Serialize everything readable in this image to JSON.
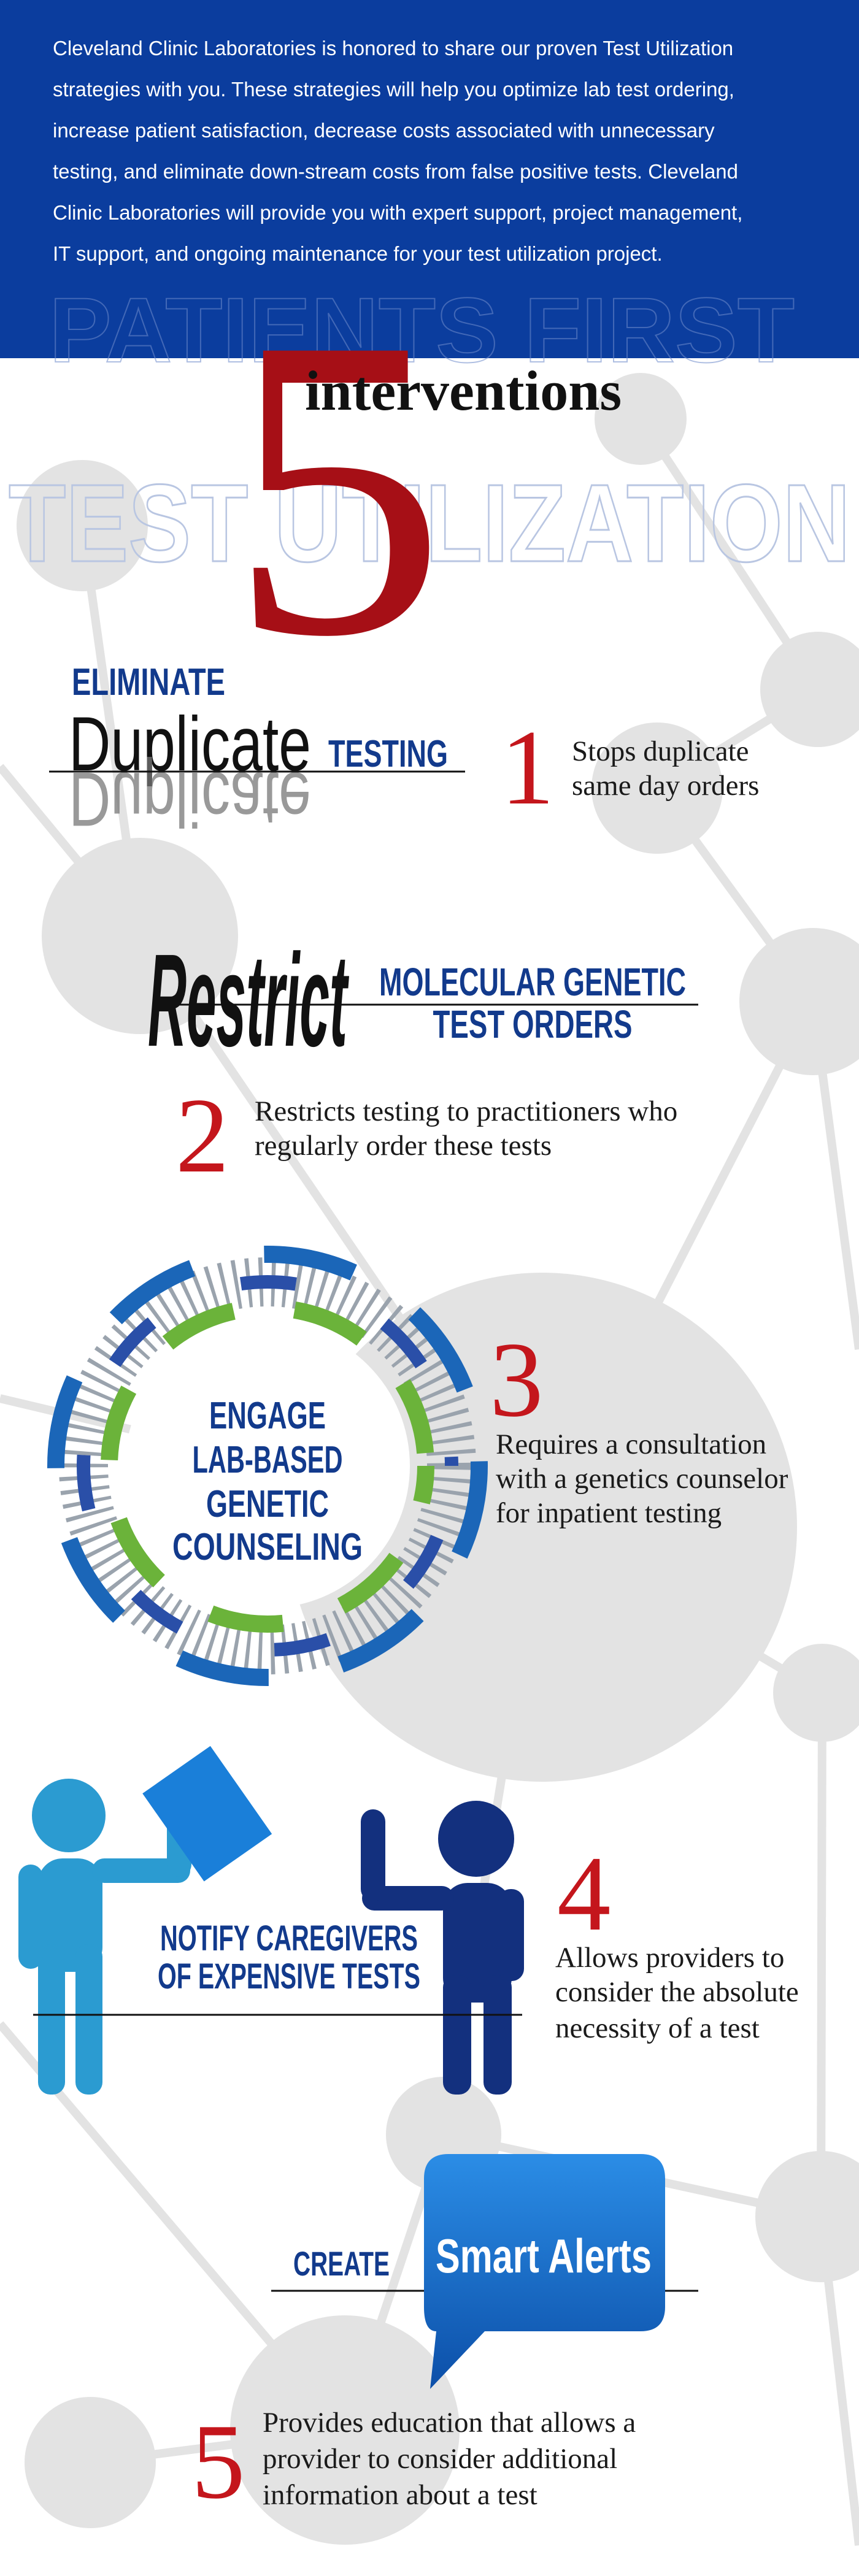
{
  "intro": [
    "Cleveland Clinic Laboratories is honored to share our proven Test Utilization",
    "strategies with you. These strategies will help you optimize lab test ordering,",
    "increase patient satisfaction, decrease costs associated with unnecessary",
    "testing, and eliminate down-stream costs from false positive tests. Cleveland",
    "Clinic Laboratories will provide you with expert support, project management,",
    "IT support, and ongoing maintenance for your test utilization project."
  ],
  "watermarks": [
    "PATIENTS FIRST",
    "TEST UTILIZATION"
  ],
  "headline": {
    "number": "5",
    "word": "interventions"
  },
  "interventions": [
    {
      "number": "1",
      "headings": [
        "ELIMINATE",
        "Duplicate",
        "TESTING"
      ],
      "description": [
        "Stops duplicate",
        "same day orders"
      ]
    },
    {
      "number": "2",
      "headings": [
        "Restrict",
        "MOLECULAR GENETIC",
        "TEST ORDERS"
      ],
      "description": [
        "Restricts testing to practitioners who",
        "regularly order these tests"
      ]
    },
    {
      "number": "3",
      "headings": [
        "ENGAGE",
        "LAB-BASED",
        "GENETIC",
        "COUNSELING"
      ],
      "description": [
        "Requires a consultation",
        "with a genetics counselor",
        "for inpatient testing"
      ]
    },
    {
      "number": "4",
      "headings": [
        "NOTIFY CAREGIVERS",
        "OF EXPENSIVE TESTS"
      ],
      "description": [
        "Allows providers to",
        "consider the absolute",
        "necessity of a test"
      ]
    },
    {
      "number": "5",
      "headings": [
        "CREATE",
        "Smart Alerts"
      ],
      "description": [
        "Provides education that allows a",
        "provider to consider additional",
        "information about a test"
      ]
    }
  ]
}
